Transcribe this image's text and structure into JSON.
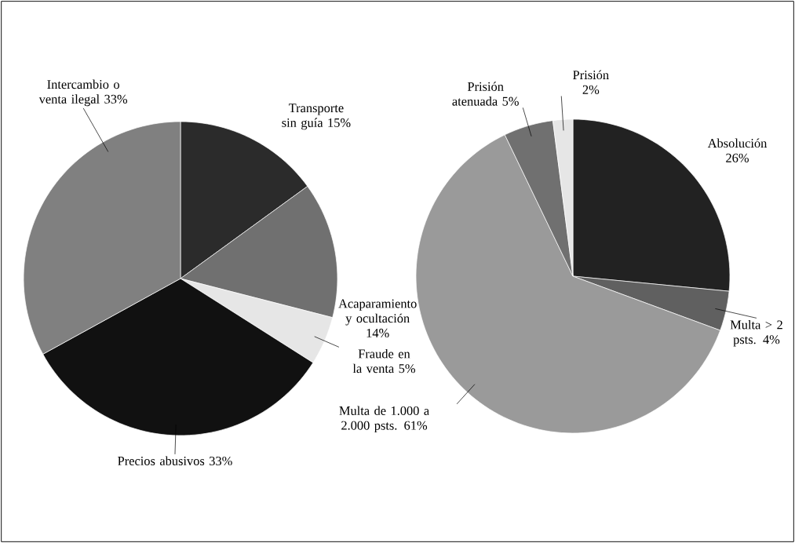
{
  "chart_data": [
    {
      "type": "pie",
      "categories": [
        "Transporte sin guía",
        "Acaparamiento y ocultación",
        "Fraude en la venta",
        "Precios abusivos",
        "Intercambio o venta ilegal"
      ],
      "values": [
        15,
        14,
        5,
        33,
        33
      ],
      "value_labels": [
        "15%",
        "14%",
        "5%",
        "33%",
        "33%"
      ],
      "colors": [
        "#2b2b2b",
        "#707070",
        "#e6e6e6",
        "#111111",
        "#808080"
      ]
    },
    {
      "type": "pie",
      "categories": [
        "Absolución",
        "Multa > 2 psts.",
        "Multa de 1.000 a 2.000 psts.",
        "Prisión atenuada",
        "Prisión"
      ],
      "values": [
        26,
        4,
        61,
        5,
        2
      ],
      "value_labels": [
        "26%",
        "4%",
        "61%",
        "5%",
        "2%"
      ],
      "colors": [
        "#222222",
        "#606060",
        "#9a9a9a",
        "#707070",
        "#e6e6e6"
      ]
    }
  ]
}
